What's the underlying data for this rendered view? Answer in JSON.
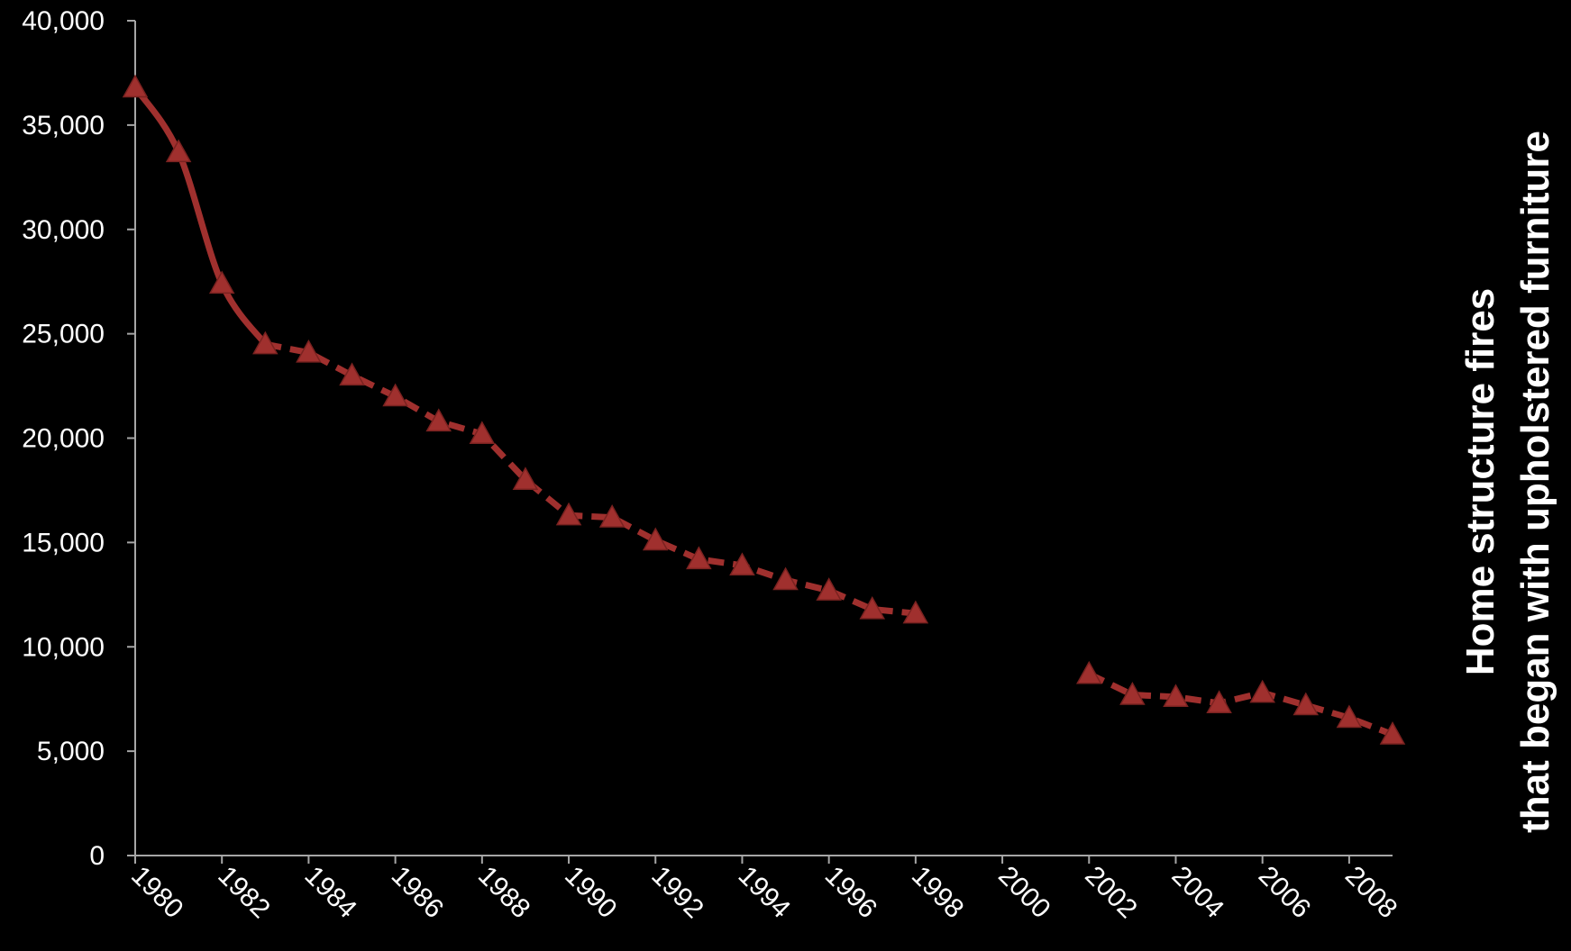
{
  "chart_data": {
    "type": "line",
    "title": "",
    "xlabel": "",
    "ylabel": [
      "Home structure fires",
      "that began with upholstered furniture"
    ],
    "x": [
      1980,
      1981,
      1982,
      1983,
      1984,
      1985,
      1986,
      1987,
      1988,
      1989,
      1990,
      1991,
      1992,
      1993,
      1994,
      1995,
      1996,
      1997,
      1998,
      1999,
      2000,
      2001,
      2002,
      2003,
      2004,
      2005,
      2006,
      2007,
      2008,
      2009
    ],
    "x_tick_labels": [
      "1980",
      "1982",
      "1984",
      "1986",
      "1988",
      "1990",
      "1992",
      "1994",
      "1996",
      "1998",
      "2000",
      "2002",
      "2004",
      "2006",
      "2008"
    ],
    "y_tick_labels": [
      "0",
      "5,000",
      "10,000",
      "15,000",
      "20,000",
      "25,000",
      "30,000",
      "35,000",
      "40,000"
    ],
    "ylim": [
      0,
      40000
    ],
    "xlim": [
      1980,
      2009
    ],
    "series": [
      {
        "values": [
          36800,
          33700,
          27400,
          24500,
          24100,
          23000,
          22000,
          20800,
          20200,
          18000,
          16300,
          16200,
          15100,
          14200,
          13900,
          13200,
          12700,
          11800,
          11600,
          null,
          null,
          null,
          8700,
          7700,
          7600,
          7300,
          7800,
          7200,
          6600,
          5800
        ],
        "solid_until_index": 3,
        "color": "#a0302e"
      }
    ],
    "grid": false,
    "legend": "none"
  }
}
